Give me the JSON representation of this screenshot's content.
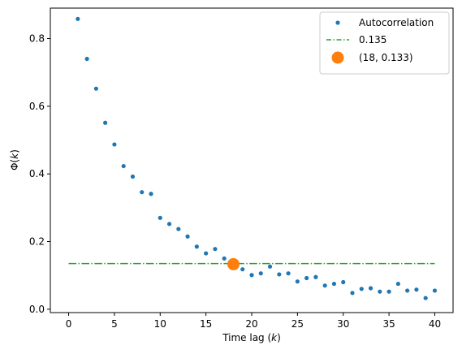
{
  "chart_data": {
    "type": "scatter",
    "xlabel": "Time lag (k)",
    "ylabel": "Φ(k)",
    "xlim": [
      -2,
      42
    ],
    "ylim": [
      -0.01,
      0.89
    ],
    "x_ticks": [
      0,
      5,
      10,
      15,
      20,
      25,
      30,
      35,
      40
    ],
    "y_ticks": [
      0.0,
      0.2,
      0.4,
      0.6,
      0.8
    ],
    "grid": false,
    "legend_position": "top-right",
    "series": [
      {
        "name": "Autocorrelation",
        "kind": "points",
        "color": "#1f77b4",
        "x": [
          1,
          2,
          3,
          4,
          5,
          6,
          7,
          8,
          9,
          10,
          11,
          12,
          13,
          14,
          15,
          16,
          17,
          18,
          19,
          20,
          21,
          22,
          23,
          24,
          25,
          26,
          27,
          28,
          29,
          30,
          31,
          32,
          33,
          34,
          35,
          36,
          37,
          38,
          39,
          40
        ],
        "y": [
          0.858,
          0.74,
          0.652,
          0.551,
          0.487,
          0.423,
          0.392,
          0.346,
          0.341,
          0.27,
          0.252,
          0.237,
          0.215,
          0.185,
          0.165,
          0.178,
          0.15,
          0.133,
          0.118,
          0.101,
          0.106,
          0.126,
          0.103,
          0.106,
          0.082,
          0.092,
          0.095,
          0.07,
          0.075,
          0.08,
          0.048,
          0.06,
          0.062,
          0.052,
          0.052,
          0.075,
          0.055,
          0.058,
          0.033,
          0.055
        ]
      },
      {
        "name": "0.135",
        "kind": "hline",
        "color": "#2ca02c",
        "x_range": [
          0,
          40
        ],
        "y": 0.135
      },
      {
        "name": "(18, 0.133)",
        "kind": "marker",
        "color": "#ff7f0e",
        "x": 18,
        "y": 0.133
      }
    ]
  }
}
